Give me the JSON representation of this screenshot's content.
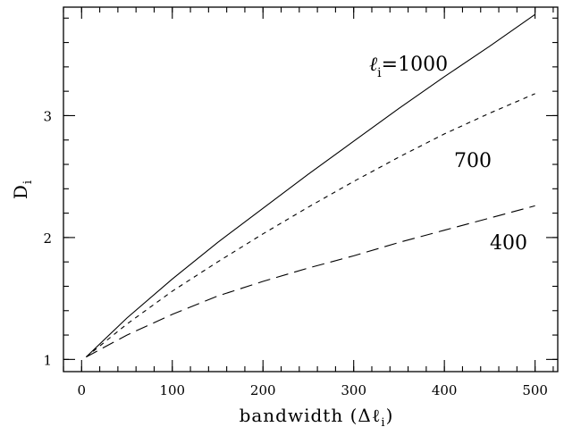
{
  "chart_data": {
    "type": "line",
    "xlabel": "bandwidth (Δℓᵢ)",
    "ylabel": "Dᵢ",
    "xlim": [
      -20,
      525
    ],
    "ylim": [
      0.9,
      3.89
    ],
    "x_ticks": [
      0,
      100,
      200,
      300,
      400,
      500
    ],
    "x_tick_labels": [
      "0",
      "100",
      "200",
      "300",
      "400",
      "500"
    ],
    "y_ticks": [
      1,
      2,
      3
    ],
    "y_tick_labels": [
      "1",
      "2",
      "3"
    ],
    "x_minor_step": 20,
    "y_minor_step": 0.2,
    "grid": false,
    "legend": "none",
    "series": [
      {
        "name": "ℓᵢ=1000",
        "style": "solid",
        "x": [
          5,
          50,
          100,
          150,
          200,
          250,
          300,
          350,
          400,
          450,
          500
        ],
        "y": [
          1.02,
          1.34,
          1.66,
          1.96,
          2.24,
          2.52,
          2.79,
          3.06,
          3.32,
          3.57,
          3.83
        ]
      },
      {
        "name": "700",
        "style": "dashed",
        "x": [
          5,
          50,
          100,
          150,
          200,
          250,
          300,
          350,
          400,
          450,
          500
        ],
        "y": [
          1.02,
          1.29,
          1.56,
          1.8,
          2.03,
          2.25,
          2.46,
          2.66,
          2.85,
          3.02,
          3.18
        ]
      },
      {
        "name": "400",
        "style": "longdash",
        "x": [
          5,
          50,
          100,
          150,
          200,
          250,
          300,
          350,
          400,
          450,
          500
        ],
        "y": [
          1.02,
          1.2,
          1.37,
          1.52,
          1.64,
          1.75,
          1.85,
          1.96,
          2.06,
          2.16,
          2.26
        ]
      }
    ],
    "annotations": {
      "label_1000_prefix": "ℓ",
      "label_1000_sub": "i",
      "label_1000_rest": "=1000",
      "label_700": "700",
      "label_400": "400",
      "xlabel_prefix": "bandwidth (Δℓ",
      "xlabel_sub": "i",
      "xlabel_suffix": ")",
      "ylabel_main": "D",
      "ylabel_sub": "i"
    }
  }
}
